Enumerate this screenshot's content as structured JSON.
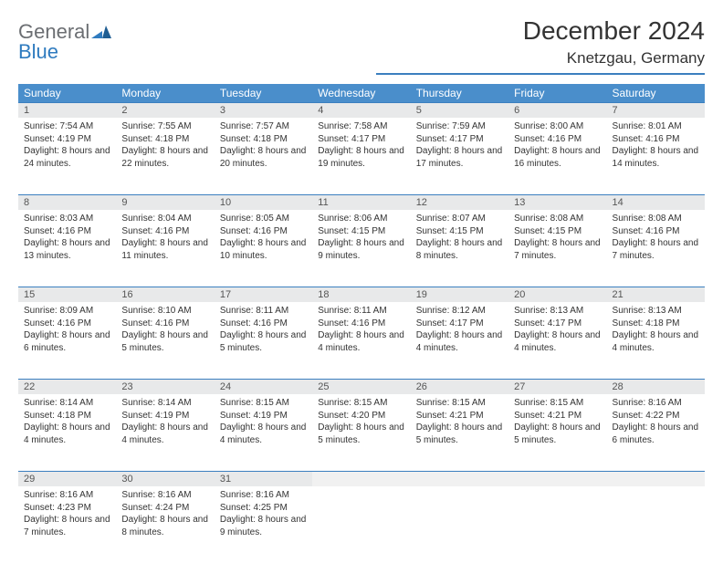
{
  "brand": {
    "general": "General",
    "blue": "Blue"
  },
  "title": "December 2024",
  "location": "Knetzgau, Germany",
  "colors": {
    "header_bg": "#4a8ecb",
    "rule": "#3b7fbf",
    "daynum_bg": "#e8e9ea",
    "empty_bg": "#f1f1f1",
    "text": "#333333"
  },
  "weekdays": [
    "Sunday",
    "Monday",
    "Tuesday",
    "Wednesday",
    "Thursday",
    "Friday",
    "Saturday"
  ],
  "weeks": [
    [
      {
        "n": "1",
        "sr": "Sunrise: 7:54 AM",
        "ss": "Sunset: 4:19 PM",
        "dl": "Daylight: 8 hours and 24 minutes."
      },
      {
        "n": "2",
        "sr": "Sunrise: 7:55 AM",
        "ss": "Sunset: 4:18 PM",
        "dl": "Daylight: 8 hours and 22 minutes."
      },
      {
        "n": "3",
        "sr": "Sunrise: 7:57 AM",
        "ss": "Sunset: 4:18 PM",
        "dl": "Daylight: 8 hours and 20 minutes."
      },
      {
        "n": "4",
        "sr": "Sunrise: 7:58 AM",
        "ss": "Sunset: 4:17 PM",
        "dl": "Daylight: 8 hours and 19 minutes."
      },
      {
        "n": "5",
        "sr": "Sunrise: 7:59 AM",
        "ss": "Sunset: 4:17 PM",
        "dl": "Daylight: 8 hours and 17 minutes."
      },
      {
        "n": "6",
        "sr": "Sunrise: 8:00 AM",
        "ss": "Sunset: 4:16 PM",
        "dl": "Daylight: 8 hours and 16 minutes."
      },
      {
        "n": "7",
        "sr": "Sunrise: 8:01 AM",
        "ss": "Sunset: 4:16 PM",
        "dl": "Daylight: 8 hours and 14 minutes."
      }
    ],
    [
      {
        "n": "8",
        "sr": "Sunrise: 8:03 AM",
        "ss": "Sunset: 4:16 PM",
        "dl": "Daylight: 8 hours and 13 minutes."
      },
      {
        "n": "9",
        "sr": "Sunrise: 8:04 AM",
        "ss": "Sunset: 4:16 PM",
        "dl": "Daylight: 8 hours and 11 minutes."
      },
      {
        "n": "10",
        "sr": "Sunrise: 8:05 AM",
        "ss": "Sunset: 4:16 PM",
        "dl": "Daylight: 8 hours and 10 minutes."
      },
      {
        "n": "11",
        "sr": "Sunrise: 8:06 AM",
        "ss": "Sunset: 4:15 PM",
        "dl": "Daylight: 8 hours and 9 minutes."
      },
      {
        "n": "12",
        "sr": "Sunrise: 8:07 AM",
        "ss": "Sunset: 4:15 PM",
        "dl": "Daylight: 8 hours and 8 minutes."
      },
      {
        "n": "13",
        "sr": "Sunrise: 8:08 AM",
        "ss": "Sunset: 4:15 PM",
        "dl": "Daylight: 8 hours and 7 minutes."
      },
      {
        "n": "14",
        "sr": "Sunrise: 8:08 AM",
        "ss": "Sunset: 4:16 PM",
        "dl": "Daylight: 8 hours and 7 minutes."
      }
    ],
    [
      {
        "n": "15",
        "sr": "Sunrise: 8:09 AM",
        "ss": "Sunset: 4:16 PM",
        "dl": "Daylight: 8 hours and 6 minutes."
      },
      {
        "n": "16",
        "sr": "Sunrise: 8:10 AM",
        "ss": "Sunset: 4:16 PM",
        "dl": "Daylight: 8 hours and 5 minutes."
      },
      {
        "n": "17",
        "sr": "Sunrise: 8:11 AM",
        "ss": "Sunset: 4:16 PM",
        "dl": "Daylight: 8 hours and 5 minutes."
      },
      {
        "n": "18",
        "sr": "Sunrise: 8:11 AM",
        "ss": "Sunset: 4:16 PM",
        "dl": "Daylight: 8 hours and 4 minutes."
      },
      {
        "n": "19",
        "sr": "Sunrise: 8:12 AM",
        "ss": "Sunset: 4:17 PM",
        "dl": "Daylight: 8 hours and 4 minutes."
      },
      {
        "n": "20",
        "sr": "Sunrise: 8:13 AM",
        "ss": "Sunset: 4:17 PM",
        "dl": "Daylight: 8 hours and 4 minutes."
      },
      {
        "n": "21",
        "sr": "Sunrise: 8:13 AM",
        "ss": "Sunset: 4:18 PM",
        "dl": "Daylight: 8 hours and 4 minutes."
      }
    ],
    [
      {
        "n": "22",
        "sr": "Sunrise: 8:14 AM",
        "ss": "Sunset: 4:18 PM",
        "dl": "Daylight: 8 hours and 4 minutes."
      },
      {
        "n": "23",
        "sr": "Sunrise: 8:14 AM",
        "ss": "Sunset: 4:19 PM",
        "dl": "Daylight: 8 hours and 4 minutes."
      },
      {
        "n": "24",
        "sr": "Sunrise: 8:15 AM",
        "ss": "Sunset: 4:19 PM",
        "dl": "Daylight: 8 hours and 4 minutes."
      },
      {
        "n": "25",
        "sr": "Sunrise: 8:15 AM",
        "ss": "Sunset: 4:20 PM",
        "dl": "Daylight: 8 hours and 5 minutes."
      },
      {
        "n": "26",
        "sr": "Sunrise: 8:15 AM",
        "ss": "Sunset: 4:21 PM",
        "dl": "Daylight: 8 hours and 5 minutes."
      },
      {
        "n": "27",
        "sr": "Sunrise: 8:15 AM",
        "ss": "Sunset: 4:21 PM",
        "dl": "Daylight: 8 hours and 5 minutes."
      },
      {
        "n": "28",
        "sr": "Sunrise: 8:16 AM",
        "ss": "Sunset: 4:22 PM",
        "dl": "Daylight: 8 hours and 6 minutes."
      }
    ],
    [
      {
        "n": "29",
        "sr": "Sunrise: 8:16 AM",
        "ss": "Sunset: 4:23 PM",
        "dl": "Daylight: 8 hours and 7 minutes."
      },
      {
        "n": "30",
        "sr": "Sunrise: 8:16 AM",
        "ss": "Sunset: 4:24 PM",
        "dl": "Daylight: 8 hours and 8 minutes."
      },
      {
        "n": "31",
        "sr": "Sunrise: 8:16 AM",
        "ss": "Sunset: 4:25 PM",
        "dl": "Daylight: 8 hours and 9 minutes."
      },
      null,
      null,
      null,
      null
    ]
  ]
}
